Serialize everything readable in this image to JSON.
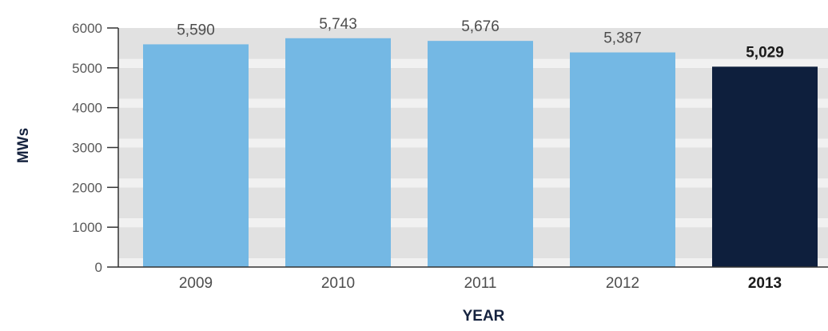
{
  "chart_data": {
    "type": "bar",
    "title": "",
    "xlabel": "YEAR",
    "ylabel": "MWs",
    "categories": [
      "2009",
      "2010",
      "2011",
      "2012",
      "2013"
    ],
    "values": [
      5590,
      5743,
      5676,
      5387,
      5029
    ],
    "value_labels": [
      "5,590",
      "5,743",
      "5,676",
      "5,387",
      "5,029"
    ],
    "highlight_index": 4,
    "ylim": [
      0,
      6000
    ],
    "yticks": [
      "0",
      "1000",
      "2000",
      "3000",
      "4000",
      "5000",
      "6000"
    ],
    "grid": "alternating horizontal bands",
    "colors": {
      "bar": "#74b8e4",
      "highlight_bar": "#0e1f3d",
      "band_dark": "#e1e1e1",
      "band_light": "#f1f1f1",
      "axis": "#333333"
    }
  }
}
